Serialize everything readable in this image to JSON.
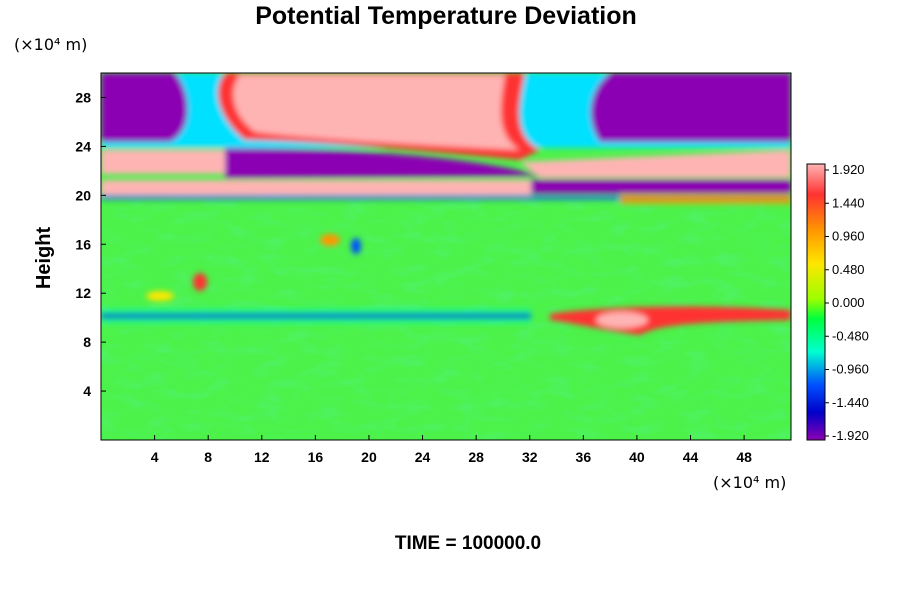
{
  "chart_data": {
    "type": "heatmap",
    "title": "Potential Temperature Deviation",
    "ylabel": "Height",
    "y_unit": "(×10⁴ m)",
    "x_unit": "(×10⁴ m)",
    "xlim": [
      0,
      51.5
    ],
    "ylim": [
      0,
      30
    ],
    "xticks": [
      4,
      8,
      12,
      16,
      20,
      24,
      28,
      32,
      36,
      40,
      44,
      48
    ],
    "yticks": [
      4,
      8,
      12,
      16,
      20,
      24,
      28
    ],
    "time_label": "TIME = 100000.0",
    "colorbar": {
      "ticks": [
        "1.920",
        "1.440",
        "0.960",
        "0.480",
        "0.000",
        "-0.480",
        "-0.960",
        "-1.440",
        "-1.920"
      ],
      "colors": [
        "#ffb4b4",
        "#ff3232",
        "#ff9600",
        "#ffe600",
        "#9bff00",
        "#00ff3c",
        "#00ffcf",
        "#0050ff",
        "#0000c8",
        "#8c00b4"
      ]
    },
    "field_summary": [
      {
        "region": "x 0-7, z 24-30",
        "value": -1.92
      },
      {
        "region": "x 10-31, z 24-30",
        "value": 1.92
      },
      {
        "region": "x 38-51, z 24-30",
        "value": -1.92
      },
      {
        "region": "x 0-10, z 21.5-24",
        "value": 1.92
      },
      {
        "region": "x 10-32, z 21.5-24",
        "value": -1.92
      },
      {
        "region": "x 33-51, z 21.5-23.5",
        "value": 1.92
      },
      {
        "region": "x 0-32, z 19.7-21",
        "value": 1.92
      },
      {
        "region": "x 33-51, z 20-21",
        "value": -1.92
      },
      {
        "region": "x 0-51, z 0-19",
        "value": 0.0
      },
      {
        "region": "x 2-33, z 9.5-10",
        "value": -1.44
      },
      {
        "region": "x 34-51, z 9.5-10.5",
        "value": 1.44
      },
      {
        "region": "x 38-42, z 9.2-10.4",
        "value": 1.92
      }
    ]
  }
}
